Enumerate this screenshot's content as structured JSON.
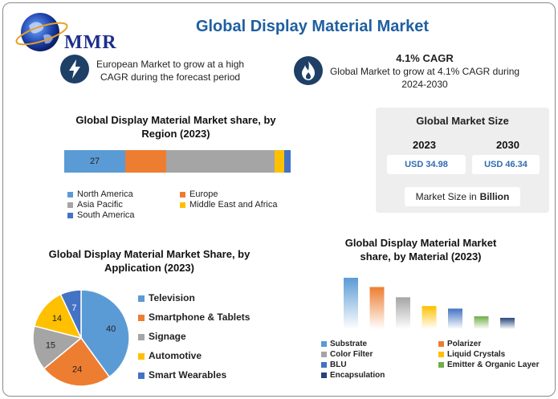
{
  "header": {
    "logo_text": "MMR",
    "title": "Global Display Material Market"
  },
  "highlights": {
    "europe": "European Market to grow at a high CAGR during the forecast period",
    "cagr_title": "4.1% CAGR",
    "cagr_text": "Global Market to grow at 4.1% CAGR during 2024-2030"
  },
  "market_size": {
    "title": "Global Market Size",
    "years": [
      "2023",
      "2030"
    ],
    "values": [
      "USD 34.98",
      "USD 46.34"
    ],
    "unit_prefix": "Market Size in",
    "unit_bold": "Billion"
  },
  "colors": {
    "north_america": "#5b9bd5",
    "europe": "#ed7d31",
    "asia_pacific": "#a5a5a5",
    "mea": "#ffc000",
    "south_america": "#4472c4",
    "emitter": "#70ad47",
    "encapsulation": "#264478",
    "icon_bg": "#1e3f66",
    "title_blue": "#1f5fa0"
  },
  "chart_data": [
    {
      "type": "bar",
      "orientation": "horizontal-stacked",
      "title": "Global Display Material Market share, by Region (2023)",
      "categories": [
        "North America",
        "Europe",
        "Asia Pacific",
        "Middle East and Africa",
        "South America"
      ],
      "values": [
        27,
        18,
        48,
        4,
        3
      ],
      "data_labels": [
        "27",
        "",
        "",
        "",
        ""
      ],
      "legend": "bottom"
    },
    {
      "type": "pie",
      "title": "Global Display Material Market Share, by Application (2023)",
      "categories": [
        "Television",
        "Smartphone & Tablets",
        "Signage",
        "Automotive",
        "Smart Wearables"
      ],
      "values": [
        40,
        24,
        15,
        14,
        7
      ],
      "legend": "right"
    },
    {
      "type": "bar",
      "title": "Global Display Material Market share, by Material (2023)",
      "categories": [
        "Substrate",
        "Polarizer",
        "Color Filter",
        "Liquid Crystals",
        "BLU",
        "Emitter & Organic Layer",
        "Encapsulation"
      ],
      "values": [
        100,
        82,
        62,
        45,
        40,
        25,
        22
      ],
      "legend": "bottom"
    }
  ]
}
